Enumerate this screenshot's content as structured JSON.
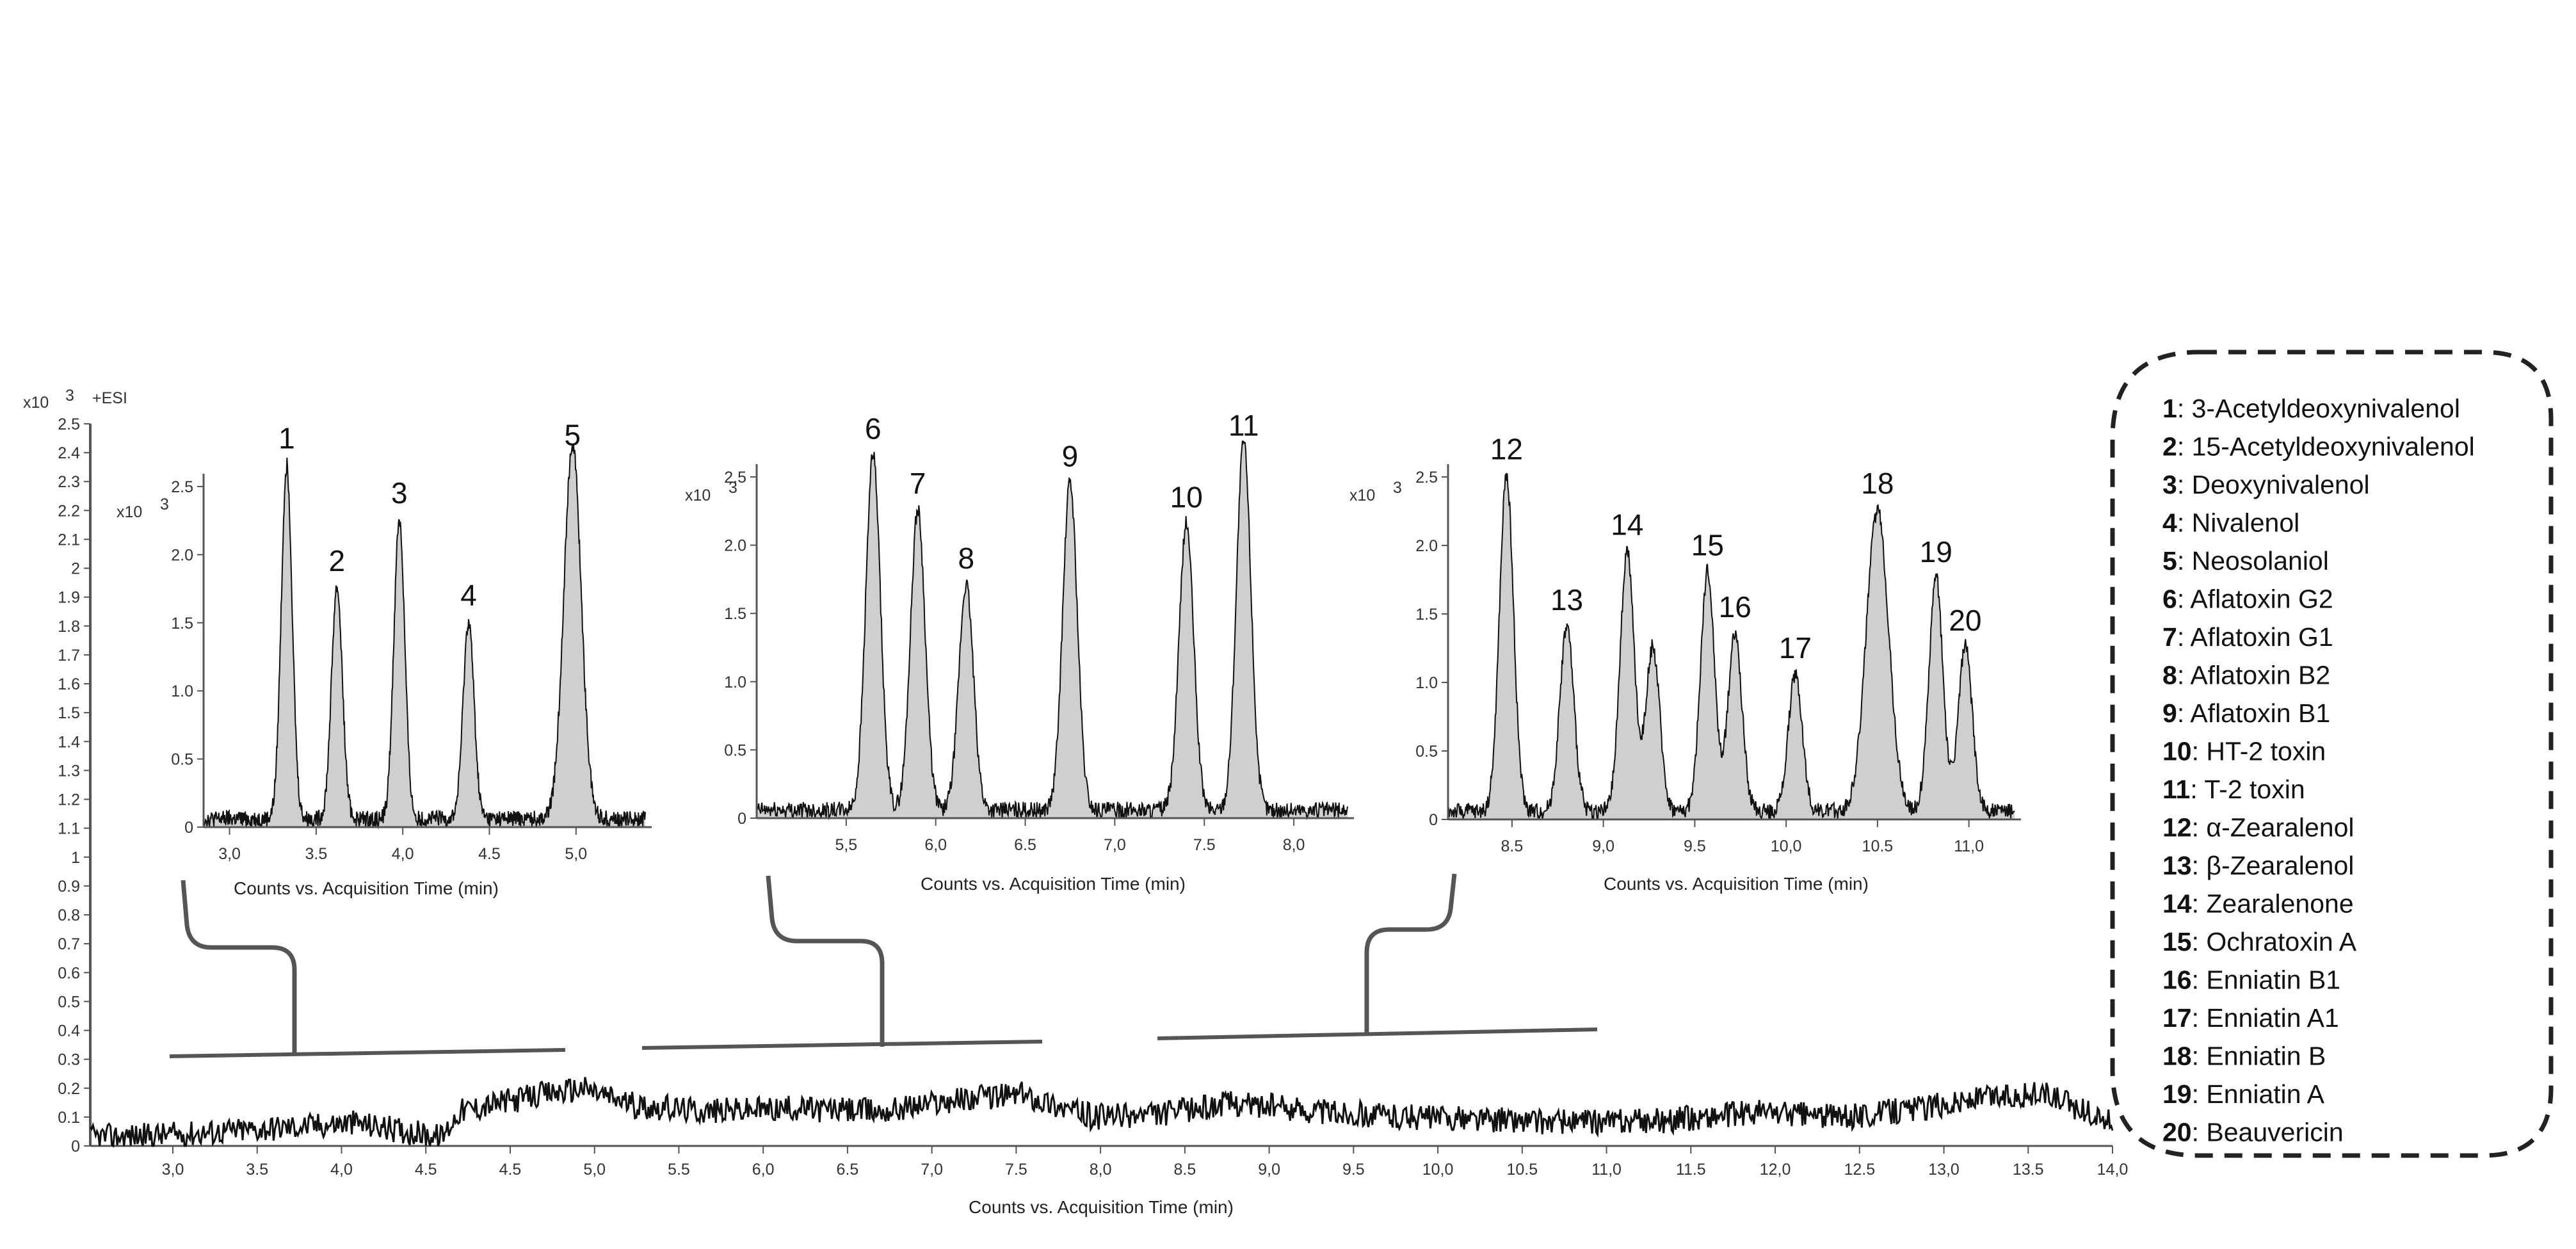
{
  "chart_data": {
    "type": "line",
    "main": {
      "xlabel": "Counts vs. Acquisition Time (min)",
      "scale_prefix": "x10",
      "scale_exponent": "3",
      "ion_mode": "+ESI",
      "x_ticks": [
        "3,0",
        "3.5",
        "4,0",
        "4.5",
        "4.5",
        "5,0",
        "5.5",
        "6,0",
        "6.5",
        "7,0",
        "7.5",
        "8,0",
        "8.5",
        "9,0",
        "9.5",
        "10,0",
        "10.5",
        "11,0",
        "11.5",
        "12,0",
        "12.5",
        "13,0",
        "13.5",
        "14,0"
      ],
      "y_ticks": [
        "0",
        "0.1",
        "0.2",
        "0.3",
        "0.4",
        "0.5",
        "0.6",
        "0.7",
        "0.8",
        "0.9",
        "1",
        "1.1",
        "1.2",
        "1.3",
        "1.4",
        "1.5",
        "1.6",
        "1.7",
        "1.8",
        "1.9",
        "2",
        "2.1",
        "2.2",
        "2.3",
        "2.4",
        "2.5"
      ],
      "ylim": [
        0,
        2.5
      ],
      "xlim": [
        2.5,
        14.0
      ],
      "baseline": {
        "x": [
          2.5,
          3.0,
          3.5,
          4.0,
          4.5,
          4.6,
          5.0,
          5.3,
          5.6,
          6.0,
          6.5,
          7.0,
          7.4,
          7.8,
          8.2,
          8.6,
          9.0,
          9.5,
          10.0,
          10.5,
          11.0,
          11.5,
          12.0,
          12.5,
          13.0,
          13.3,
          13.6,
          14.0
        ],
        "y": [
          0.03,
          0.04,
          0.06,
          0.08,
          0.03,
          0.12,
          0.17,
          0.2,
          0.14,
          0.12,
          0.13,
          0.12,
          0.16,
          0.18,
          0.1,
          0.11,
          0.15,
          0.12,
          0.1,
          0.09,
          0.08,
          0.09,
          0.12,
          0.1,
          0.14,
          0.17,
          0.18,
          0.08
        ]
      }
    },
    "insets": [
      {
        "scale_prefix": "x10",
        "scale_exponent": "3",
        "xlabel": "Counts vs. Acquisition Time (min)",
        "x_ticks": [
          3.0,
          3.5,
          4.0,
          4.5,
          5.0
        ],
        "x_tick_labels": [
          "3,0",
          "3.5",
          "4,0",
          "4.5",
          "5,0"
        ],
        "y_ticks": [
          "0",
          "0.5",
          "1.0",
          "1.5",
          "2.0",
          "2.5"
        ],
        "xlim": [
          2.85,
          5.4
        ],
        "ylim": [
          0,
          2.5
        ],
        "peaks": [
          {
            "label": "1",
            "t": 3.33,
            "h": 2.6
          },
          {
            "label": "2",
            "t": 3.62,
            "h": 1.7
          },
          {
            "label": "3",
            "t": 3.98,
            "h": 2.2
          },
          {
            "label": "4",
            "t": 4.38,
            "h": 1.45
          },
          {
            "label": "5",
            "t": 4.98,
            "h": 2.75
          }
        ]
      },
      {
        "scale_prefix": "x10",
        "scale_exponent": "3",
        "xlabel": "Counts vs. Acquisition Time (min)",
        "x_ticks": [
          5.5,
          6.0,
          6.5,
          7.0,
          7.5,
          8.0
        ],
        "x_tick_labels": [
          "5,5",
          "6,0",
          "6.5",
          "7,0",
          "7.5",
          "8,0"
        ],
        "y_ticks": [
          "0",
          "0.5",
          "1.0",
          "1.5",
          "2.0",
          "2.5"
        ],
        "xlim": [
          5.0,
          8.3
        ],
        "ylim": [
          0,
          2.5
        ],
        "peaks": [
          {
            "label": "6",
            "t": 5.65,
            "h": 2.6
          },
          {
            "label": "7",
            "t": 5.9,
            "h": 2.2
          },
          {
            "label": "8",
            "t": 6.17,
            "h": 1.65
          },
          {
            "label": "9",
            "t": 6.75,
            "h": 2.4
          },
          {
            "label": "10",
            "t": 7.4,
            "h": 2.1
          },
          {
            "label": "11",
            "t": 7.72,
            "h": 2.7
          }
        ]
      },
      {
        "scale_prefix": "x10",
        "scale_exponent": "3",
        "xlabel": "Counts vs. Acquisition Time (min)",
        "x_ticks": [
          8.5,
          9.0,
          9.5,
          10.0,
          10.5,
          11.0
        ],
        "x_tick_labels": [
          "8.5",
          "9,0",
          "9.5",
          "10,0",
          "10.5",
          "11,0"
        ],
        "y_ticks": [
          "0",
          "0.5",
          "1.0",
          "1.5",
          "2.0",
          "2.5"
        ],
        "xlim": [
          8.15,
          11.25
        ],
        "ylim": [
          0,
          2.5
        ],
        "peaks": [
          {
            "label": "12",
            "t": 8.47,
            "h": 2.45
          },
          {
            "label": "13",
            "t": 8.8,
            "h": 1.35
          },
          {
            "label": "14",
            "t": 9.13,
            "h": 1.9
          },
          {
            "label": "",
            "t": 9.27,
            "h": 1.2
          },
          {
            "label": "15",
            "t": 9.57,
            "h": 1.75
          },
          {
            "label": "16",
            "t": 9.72,
            "h": 1.3
          },
          {
            "label": "17",
            "t": 10.05,
            "h": 1.0
          },
          {
            "label": "18",
            "t": 10.5,
            "h": 2.2
          },
          {
            "label": "19",
            "t": 10.82,
            "h": 1.7
          },
          {
            "label": "20",
            "t": 10.98,
            "h": 1.2
          }
        ]
      }
    ],
    "legend": {
      "placement": "right",
      "items": [
        {
          "num": "1",
          "name": ": 3-Acetyldeoxynivalenol"
        },
        {
          "num": "2",
          "name": ": 15-Acetyldeoxynivalenol"
        },
        {
          "num": "3",
          "name": ": Deoxynivalenol"
        },
        {
          "num": "4",
          "name": ": Nivalenol"
        },
        {
          "num": "5",
          "name": ": Neosolaniol"
        },
        {
          "num": "6",
          "name": ": Aflatoxin G2"
        },
        {
          "num": "7",
          "name": ": Aflatoxin G1"
        },
        {
          "num": "8",
          "name": ": Aflatoxin B2"
        },
        {
          "num": "9",
          "name": ": Aflatoxin B1"
        },
        {
          "num": "10",
          "name": ": HT-2 toxin"
        },
        {
          "num": "11",
          "name": ": T-2 toxin"
        },
        {
          "num": "12",
          "name": ": α-Zearalenol"
        },
        {
          "num": "13",
          "name": ": β-Zearalenol"
        },
        {
          "num": "14",
          "name": ": Zearalenone"
        },
        {
          "num": "15",
          "name": ": Ochratoxin A"
        },
        {
          "num": "16",
          "name": ": Enniatin B1"
        },
        {
          "num": "17",
          "name": ": Enniatin A1"
        },
        {
          "num": "18",
          "name": ": Enniatin B"
        },
        {
          "num": "19",
          "name": ": Enniatin A"
        },
        {
          "num": "20",
          "name": ": Beauvericin"
        }
      ]
    },
    "colors": {
      "peak_fill": "#cfcfcf",
      "line": "#111111",
      "axis": "#555555",
      "bracket": "#555555"
    }
  }
}
